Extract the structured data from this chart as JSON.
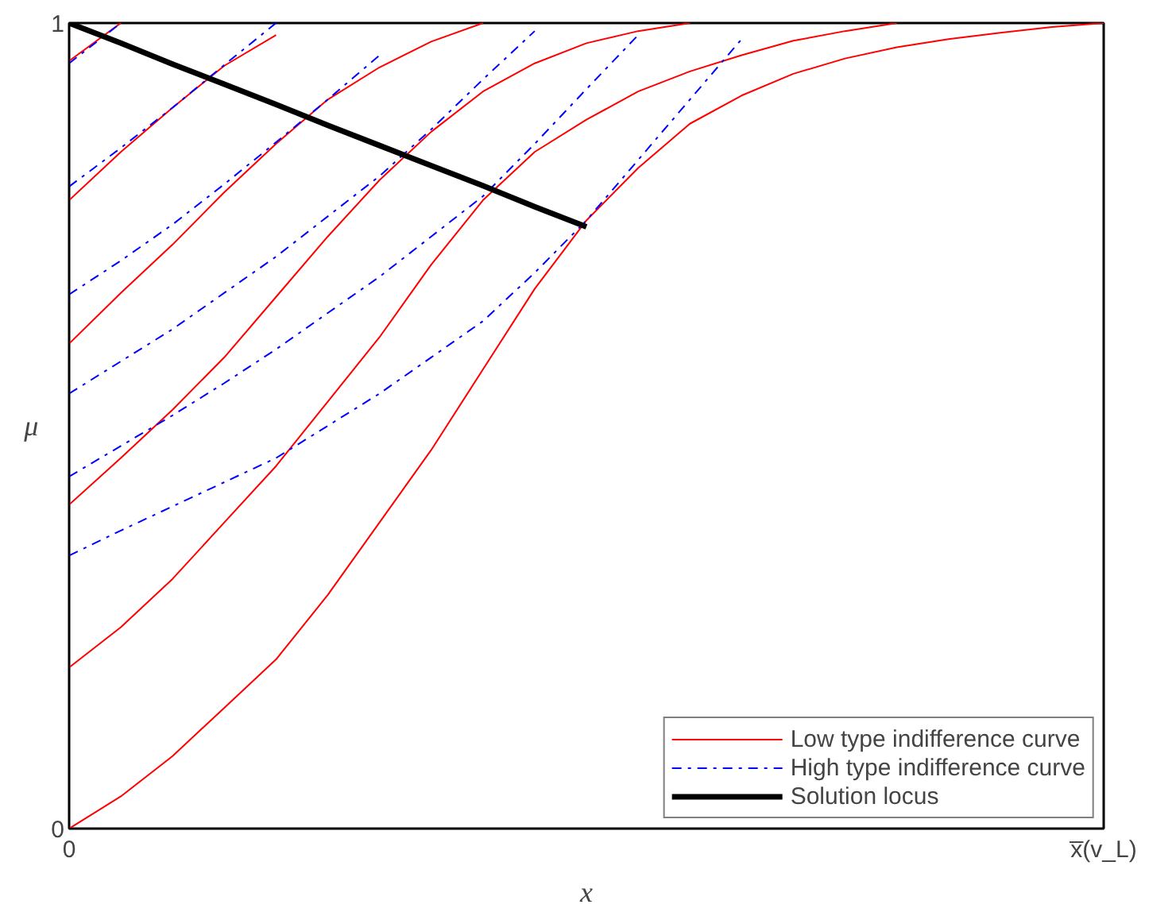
{
  "chart_data": {
    "type": "line",
    "xlabel": "x",
    "ylabel": "μ",
    "categories": [
      "0",
      null,
      null,
      null,
      null,
      null,
      null,
      null,
      null,
      null,
      null,
      null,
      null,
      null,
      null,
      null,
      null,
      null,
      null,
      null,
      "x̅(v_L)"
    ],
    "ylim": [
      0,
      1
    ],
    "yticks": [
      0,
      1
    ],
    "legend": "bottom right",
    "series": [
      {
        "name": "Low type indifference curve",
        "color": "#ff0000",
        "line_style": "solid",
        "values": [
          0,
          0.04,
          0.09,
          0.15,
          0.21,
          0.29,
          0.38,
          0.47,
          0.57,
          0.67,
          0.755,
          0.82,
          0.875,
          0.91,
          0.937,
          0.956,
          0.97,
          0.98,
          0.988,
          0.995,
          1.0
        ]
      },
      {
        "color": "#ff0000",
        "line_style": "solid",
        "values": [
          0.2,
          0.25,
          0.31,
          0.38,
          0.45,
          0.53,
          0.61,
          0.7,
          0.78,
          0.84,
          0.88,
          0.915,
          0.94,
          0.96,
          0.978,
          0.99,
          1.0,
          null,
          null,
          null,
          null
        ]
      },
      {
        "color": "#ff0000",
        "line_style": "solid",
        "values": [
          0.402,
          0.46,
          0.52,
          0.585,
          0.66,
          0.735,
          0.805,
          0.865,
          0.915,
          0.95,
          0.975,
          0.99,
          1.0,
          null,
          null,
          null,
          null,
          null,
          null,
          null,
          null
        ]
      },
      {
        "color": "#ff0000",
        "line_style": "solid",
        "values": [
          0.602,
          0.665,
          0.725,
          0.79,
          0.85,
          0.905,
          0.945,
          0.977,
          1.0,
          null,
          null,
          null,
          null,
          null,
          null,
          null,
          null,
          null,
          null,
          null,
          null
        ]
      },
      {
        "color": "#ff0000",
        "line_style": "solid",
        "values": [
          0.78,
          0.84,
          0.895,
          0.947,
          0.985,
          null,
          null,
          null,
          null,
          null,
          null,
          null,
          null,
          null,
          null,
          null,
          null,
          null,
          null,
          null,
          null
        ]
      },
      {
        "color": "#ff0000",
        "line_style": "solid",
        "values": [
          0.953,
          1.0,
          null,
          null,
          null,
          null,
          null,
          null,
          null,
          null,
          null,
          null,
          null,
          null,
          null,
          null,
          null,
          null,
          null,
          null,
          null
        ]
      },
      {
        "name": "High type indifference curve",
        "color": "#0000ff",
        "line_style": "dashdot",
        "values": [
          0.339,
          0.37,
          0.4,
          0.43,
          0.46,
          0.5,
          0.54,
          0.585,
          0.63,
          0.69,
          0.755,
          0.83,
          0.905,
          0.98,
          null,
          null,
          null,
          null,
          null,
          null,
          null
        ]
      },
      {
        "color": "#0000ff",
        "line_style": "dashdot",
        "values": [
          0.437,
          0.475,
          0.513,
          0.553,
          0.595,
          0.64,
          0.685,
          0.735,
          0.785,
          0.85,
          0.918,
          0.985,
          null,
          null,
          null,
          null,
          null,
          null,
          null,
          null,
          null
        ]
      },
      {
        "color": "#0000ff",
        "line_style": "dashdot",
        "values": [
          0.54,
          0.58,
          0.62,
          0.665,
          0.71,
          0.76,
          0.81,
          0.868,
          0.93,
          0.99,
          null,
          null,
          null,
          null,
          null,
          null,
          null,
          null,
          null,
          null,
          null
        ]
      },
      {
        "color": "#0000ff",
        "line_style": "dashdot",
        "values": [
          0.663,
          0.705,
          0.75,
          0.8,
          0.852,
          0.905,
          0.96,
          null,
          null,
          null,
          null,
          null,
          null,
          null,
          null,
          null,
          null,
          null,
          null,
          null,
          null
        ]
      },
      {
        "color": "#0000ff",
        "line_style": "dashdot",
        "values": [
          0.797,
          0.845,
          0.895,
          0.948,
          1.0,
          null,
          null,
          null,
          null,
          null,
          null,
          null,
          null,
          null,
          null,
          null,
          null,
          null,
          null,
          null,
          null
        ]
      },
      {
        "color": "#0000ff",
        "line_style": "dashdot",
        "values": [
          0.95,
          1.0,
          null,
          null,
          null,
          null,
          null,
          null,
          null,
          null,
          null,
          null,
          null,
          null,
          null,
          null,
          null,
          null,
          null,
          null,
          null
        ]
      },
      {
        "name": "Solution locus",
        "color": "#000000",
        "line_style": "solid",
        "values": [
          1.0,
          0.975,
          0.949,
          0.924,
          0.899,
          0.873,
          0.848,
          0.823,
          0.798,
          0.772,
          0.747,
          null,
          null,
          null,
          null,
          null,
          null,
          null,
          null,
          null,
          null
        ]
      }
    ]
  }
}
